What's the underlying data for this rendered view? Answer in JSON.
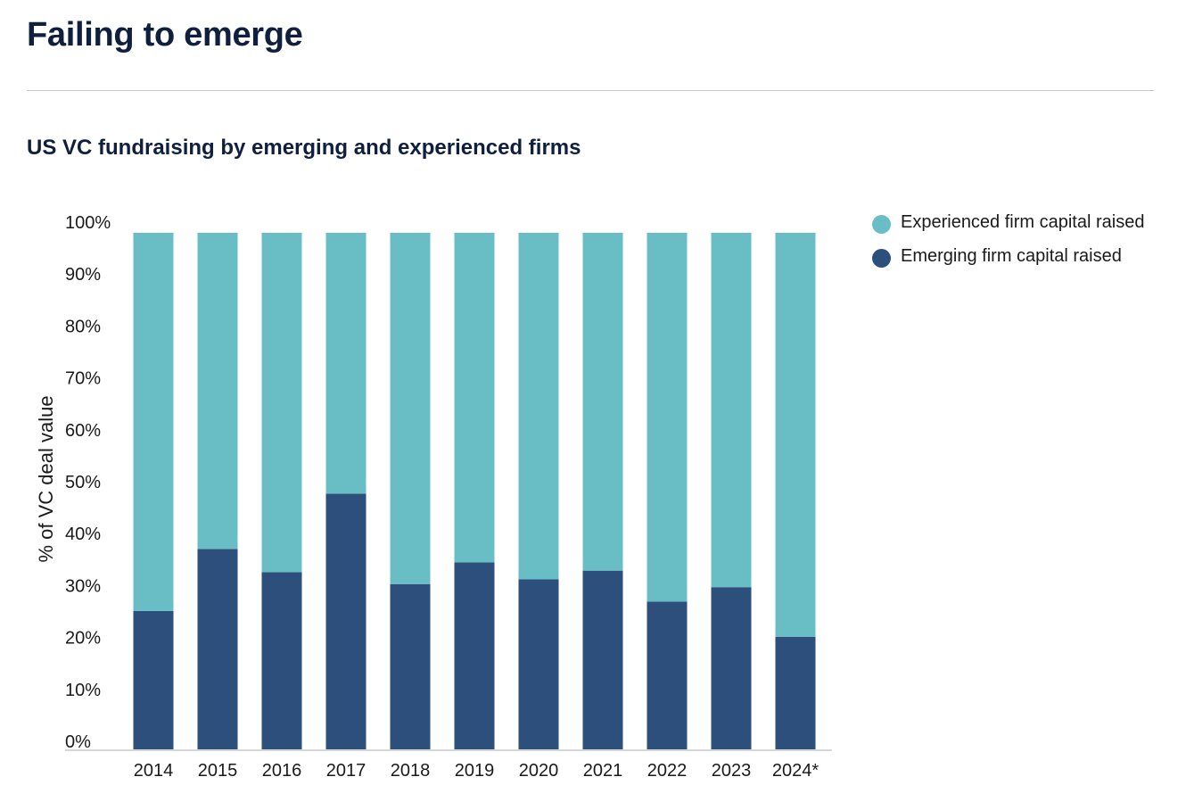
{
  "header": {
    "title": "Failing to emerge",
    "subtitle": "US VC fundraising by emerging and experienced firms"
  },
  "colors": {
    "experienced": "#69bec6",
    "emerging": "#2c4f7c",
    "axis": "#c8c8c8",
    "text": "#1a1a1a"
  },
  "chart_data": {
    "type": "bar",
    "stacked": true,
    "categories": [
      "2014",
      "2015",
      "2016",
      "2017",
      "2018",
      "2019",
      "2020",
      "2021",
      "2022",
      "2023",
      "2024*"
    ],
    "series": [
      {
        "name": "Emerging firm capital raised",
        "color": "#2c4f7c",
        "values": [
          26.8,
          38.8,
          34.3,
          49.5,
          32.0,
          36.2,
          32.9,
          34.6,
          28.6,
          31.4,
          21.8
        ]
      },
      {
        "name": "Experienced firm capital raised",
        "color": "#69bec6",
        "values": [
          73.2,
          61.2,
          65.7,
          50.5,
          68.0,
          63.8,
          67.1,
          65.4,
          71.4,
          68.6,
          78.2
        ]
      }
    ],
    "title": "US VC fundraising by emerging and experienced firms",
    "xlabel": "",
    "ylabel": "% of VC deal value",
    "ylim": [
      0,
      100
    ],
    "yticks": [
      "0%",
      "10%",
      "20%",
      "30%",
      "40%",
      "50%",
      "60%",
      "70%",
      "80%",
      "90%",
      "100%"
    ],
    "grid": false,
    "legend_position": "right"
  },
  "legend": {
    "items": [
      {
        "label": "Experienced firm capital raised",
        "color": "#69bec6"
      },
      {
        "label": "Emerging firm capital raised",
        "color": "#2c4f7c"
      }
    ]
  }
}
